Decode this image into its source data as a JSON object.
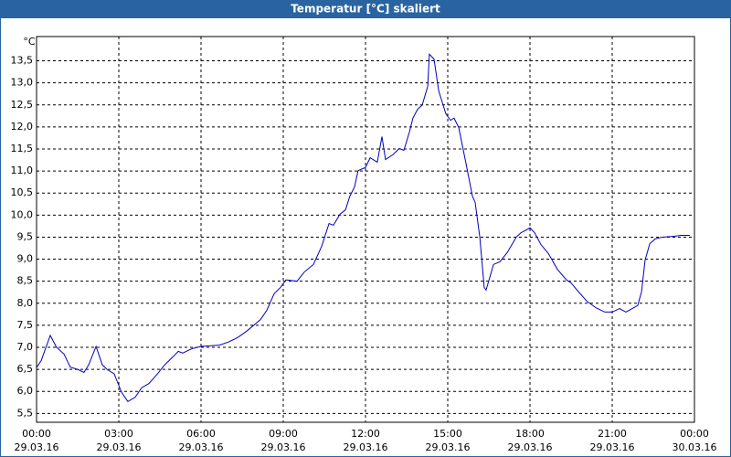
{
  "chart_data": {
    "type": "line",
    "title": "Temperatur [°C] skaliert",
    "y_label": "°C",
    "x": [
      0,
      0.17,
      0.5,
      0.73,
      1,
      1.23,
      1.5,
      1.73,
      1.9,
      2.17,
      2.4,
      2.57,
      2.83,
      3.1,
      3.33,
      3.6,
      3.83,
      4.1,
      4.4,
      4.67,
      5,
      5.17,
      5.33,
      5.67,
      6,
      6.67,
      7,
      7.33,
      7.67,
      8.17,
      8.4,
      8.67,
      8.9,
      9.1,
      9.5,
      9.77,
      10.1,
      10.4,
      10.67,
      10.83,
      11.07,
      11.27,
      11.43,
      11.6,
      11.73,
      12,
      12.17,
      12.43,
      12.6,
      12.73,
      13,
      13.23,
      13.4,
      13.6,
      13.73,
      13.9,
      14.07,
      14.27,
      14.33,
      14.5,
      14.67,
      14.93,
      15.1,
      15.23,
      15.4,
      15.67,
      15.9,
      16,
      16.17,
      16.33,
      16.4,
      16.67,
      16.9,
      17.17,
      17.5,
      17.67,
      17.83,
      18,
      18.17,
      18.4,
      18.67,
      19,
      19.33,
      19.5,
      19.77,
      20.07,
      20.4,
      20.73,
      21,
      21.27,
      21.5,
      21.73,
      21.93,
      22.07,
      22.2,
      22.37,
      22.57,
      22.83,
      23.27,
      23.5,
      23.83
    ],
    "series": [
      {
        "name": "Temperatur",
        "color": "#0000c0",
        "values": [
          6.54,
          6.7,
          7.27,
          7.0,
          6.85,
          6.55,
          6.5,
          6.43,
          6.6,
          7.02,
          6.6,
          6.5,
          6.4,
          5.98,
          5.77,
          5.87,
          6.08,
          6.18,
          6.39,
          6.6,
          6.8,
          6.91,
          6.87,
          6.97,
          7.02,
          7.05,
          7.12,
          7.22,
          7.37,
          7.63,
          7.84,
          8.22,
          8.36,
          8.53,
          8.5,
          8.71,
          8.88,
          9.29,
          9.81,
          9.77,
          10.02,
          10.12,
          10.43,
          10.64,
          11.01,
          11.08,
          11.3,
          11.2,
          11.78,
          11.26,
          11.37,
          11.51,
          11.47,
          11.88,
          12.2,
          12.4,
          12.5,
          12.92,
          13.65,
          13.54,
          12.82,
          12.3,
          12.15,
          12.2,
          11.99,
          11.16,
          10.43,
          10.29,
          9.5,
          8.36,
          8.3,
          8.88,
          8.94,
          9.15,
          9.5,
          9.6,
          9.65,
          9.71,
          9.6,
          9.33,
          9.13,
          8.77,
          8.53,
          8.46,
          8.26,
          8.05,
          7.9,
          7.8,
          7.8,
          7.88,
          7.8,
          7.88,
          7.95,
          8.26,
          8.98,
          9.35,
          9.46,
          9.5,
          9.52,
          9.54,
          9.54
        ]
      }
    ],
    "xlim": [
      0,
      24
    ],
    "xticks": [
      {
        "value": 0,
        "label": "00:00"
      },
      {
        "value": 3,
        "label": "03:00"
      },
      {
        "value": 6,
        "label": "06:00"
      },
      {
        "value": 9,
        "label": "09:00"
      },
      {
        "value": 12,
        "label": "12:00"
      },
      {
        "value": 15,
        "label": "15:00"
      },
      {
        "value": 18,
        "label": "18:00"
      },
      {
        "value": 21,
        "label": "21:00"
      },
      {
        "value": 24,
        "label": "00:00"
      }
    ],
    "xtick_dates": [
      "29.03.16",
      "29.03.16",
      "29.03.16",
      "29.03.16",
      "29.03.16",
      "29.03.16",
      "29.03.16",
      "29.03.16",
      "30.03.16"
    ],
    "ylim": [
      5.3,
      14.05
    ],
    "yticks": [
      {
        "value": 5.5,
        "label": "5,5"
      },
      {
        "value": 6,
        "label": "6,0"
      },
      {
        "value": 6.5,
        "label": "6,5"
      },
      {
        "value": 7,
        "label": "7,0"
      },
      {
        "value": 7.5,
        "label": "7,5"
      },
      {
        "value": 8,
        "label": "8,0"
      },
      {
        "value": 8.5,
        "label": "8,5"
      },
      {
        "value": 9,
        "label": "9,0"
      },
      {
        "value": 9.5,
        "label": "9,5"
      },
      {
        "value": 10,
        "label": "10,0"
      },
      {
        "value": 10.5,
        "label": "10,5"
      },
      {
        "value": 11,
        "label": "11,0"
      },
      {
        "value": 11.5,
        "label": "11,5"
      },
      {
        "value": 12,
        "label": "12,0"
      },
      {
        "value": 12.5,
        "label": "12,5"
      },
      {
        "value": 13,
        "label": "13,0"
      },
      {
        "value": 13.5,
        "label": "13,5"
      }
    ],
    "grid": true
  }
}
